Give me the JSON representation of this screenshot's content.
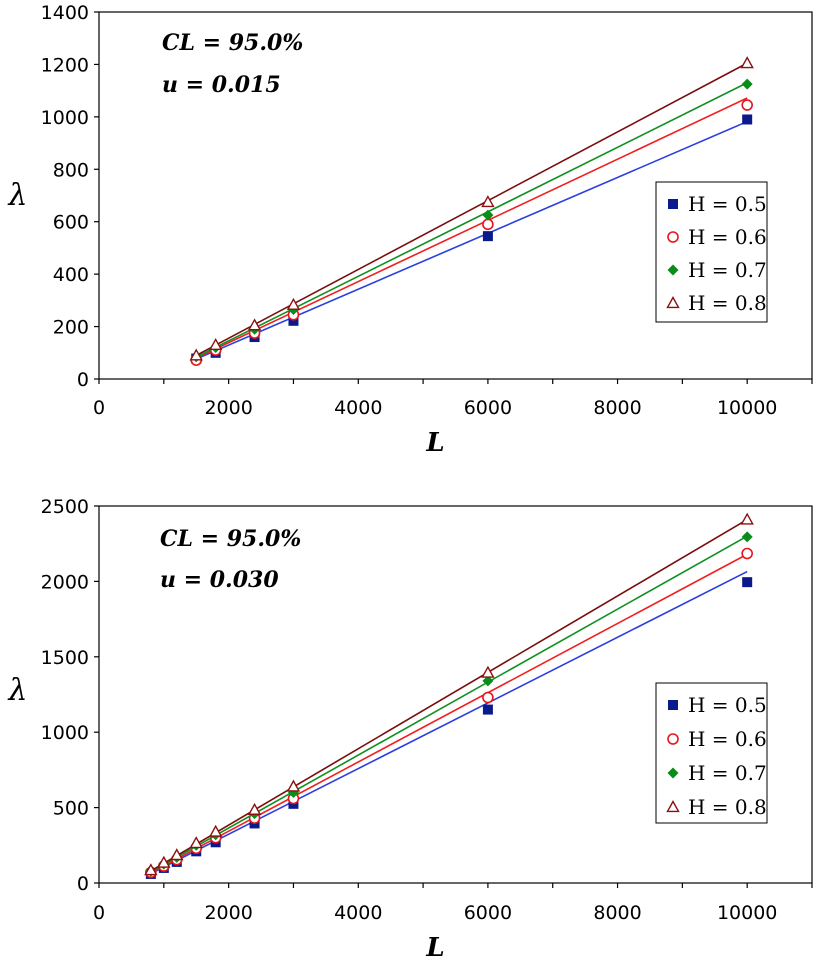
{
  "chart_data": [
    {
      "type": "scatter",
      "xlabel": "L",
      "ylabel": "λ",
      "xlim": [
        0,
        11000
      ],
      "ylim": [
        0,
        1400
      ],
      "xticks": [
        0,
        2000,
        4000,
        6000,
        8000,
        10000
      ],
      "yticks": [
        0,
        200,
        400,
        600,
        800,
        1000,
        1200,
        1400
      ],
      "xtick_labels": [
        "0",
        "2000",
        "4000",
        "6000",
        "8000",
        "10000"
      ],
      "ytick_labels": [
        "0",
        "200",
        "400",
        "600",
        "800",
        "1000",
        "1200",
        "1400"
      ],
      "annotation_line1": "CL  = 95.0%",
      "annotation_line2": "u  = 0.015",
      "legend_position": "right",
      "series": [
        {
          "name": "H = 0.5",
          "marker": "square",
          "color": "#0a1a8c",
          "line_color": "#2b3fe0",
          "x": [
            1500,
            1800,
            2400,
            3000,
            6000,
            10000
          ],
          "y": [
            78,
            100,
            160,
            222,
            545,
            990
          ],
          "fit": [
            [
              1500,
              76
            ],
            [
              10000,
              982
            ]
          ]
        },
        {
          "name": "H = 0.6",
          "marker": "circle",
          "color": "#e8141c",
          "line_color": "#f02020",
          "x": [
            1500,
            1800,
            2400,
            3000,
            6000,
            10000
          ],
          "y": [
            72,
            110,
            175,
            245,
            590,
            1045
          ],
          "fit": [
            [
              1500,
              80
            ],
            [
              10000,
              1072
            ]
          ]
        },
        {
          "name": "H = 0.7",
          "marker": "diamond",
          "color": "#0a8c1a",
          "line_color": "#109020",
          "x": [
            1500,
            1800,
            2400,
            3000,
            6000,
            10000
          ],
          "y": [
            85,
            120,
            190,
            265,
            625,
            1125
          ],
          "fit": [
            [
              1500,
              84
            ],
            [
              10000,
              1130
            ]
          ]
        },
        {
          "name": "H = 0.8",
          "marker": "triangle",
          "color": "#8c1010",
          "line_color": "#7a0c0c",
          "x": [
            1500,
            1800,
            2400,
            3000,
            6000,
            10000
          ],
          "y": [
            90,
            130,
            205,
            283,
            675,
            1205
          ],
          "fit": [
            [
              1500,
              90
            ],
            [
              10000,
              1205
            ]
          ]
        }
      ]
    },
    {
      "type": "scatter",
      "xlabel": "L",
      "ylabel": "λ",
      "xlim": [
        0,
        11000
      ],
      "ylim": [
        0,
        2500
      ],
      "xticks": [
        0,
        2000,
        4000,
        6000,
        8000,
        10000
      ],
      "yticks": [
        0,
        500,
        1000,
        1500,
        2000,
        2500
      ],
      "xtick_labels": [
        "0",
        "2000",
        "4000",
        "6000",
        "8000",
        "10000"
      ],
      "ytick_labels": [
        "0",
        "500",
        "1000",
        "1500",
        "2000",
        "2500"
      ],
      "annotation_line1": "CL  = 95.0%",
      "annotation_line2": "u  = 0.030",
      "legend_position": "right",
      "series": [
        {
          "name": "H = 0.5",
          "marker": "square",
          "color": "#0a1a8c",
          "line_color": "#2b3fe0",
          "x": [
            800,
            1000,
            1200,
            1500,
            1800,
            2400,
            3000,
            6000,
            10000
          ],
          "y": [
            60,
            100,
            140,
            210,
            270,
            395,
            525,
            1150,
            1995
          ],
          "fit": [
            [
              800,
              62
            ],
            [
              10000,
              2065
            ]
          ]
        },
        {
          "name": "H = 0.6",
          "marker": "circle",
          "color": "#e8141c",
          "line_color": "#f02020",
          "x": [
            800,
            1000,
            1200,
            1500,
            1800,
            2400,
            3000,
            6000,
            10000
          ],
          "y": [
            70,
            112,
            155,
            230,
            300,
            430,
            560,
            1230,
            2185
          ],
          "fit": [
            [
              800,
              68
            ],
            [
              10000,
              2180
            ]
          ]
        },
        {
          "name": "H = 0.7",
          "marker": "diamond",
          "color": "#0a8c1a",
          "line_color": "#109020",
          "x": [
            800,
            1000,
            1200,
            1500,
            1800,
            2400,
            3000,
            6000,
            10000
          ],
          "y": [
            78,
            125,
            170,
            250,
            320,
            460,
            600,
            1340,
            2295
          ],
          "fit": [
            [
              800,
              74
            ],
            [
              10000,
              2300
            ]
          ]
        },
        {
          "name": "H = 0.8",
          "marker": "triangle",
          "color": "#8c1010",
          "line_color": "#7a0c0c",
          "x": [
            800,
            1000,
            1200,
            1500,
            1800,
            2400,
            3000,
            6000,
            10000
          ],
          "y": [
            85,
            135,
            185,
            265,
            340,
            485,
            640,
            1395,
            2410
          ],
          "fit": [
            [
              800,
              80
            ],
            [
              10000,
              2410
            ]
          ]
        }
      ]
    }
  ]
}
